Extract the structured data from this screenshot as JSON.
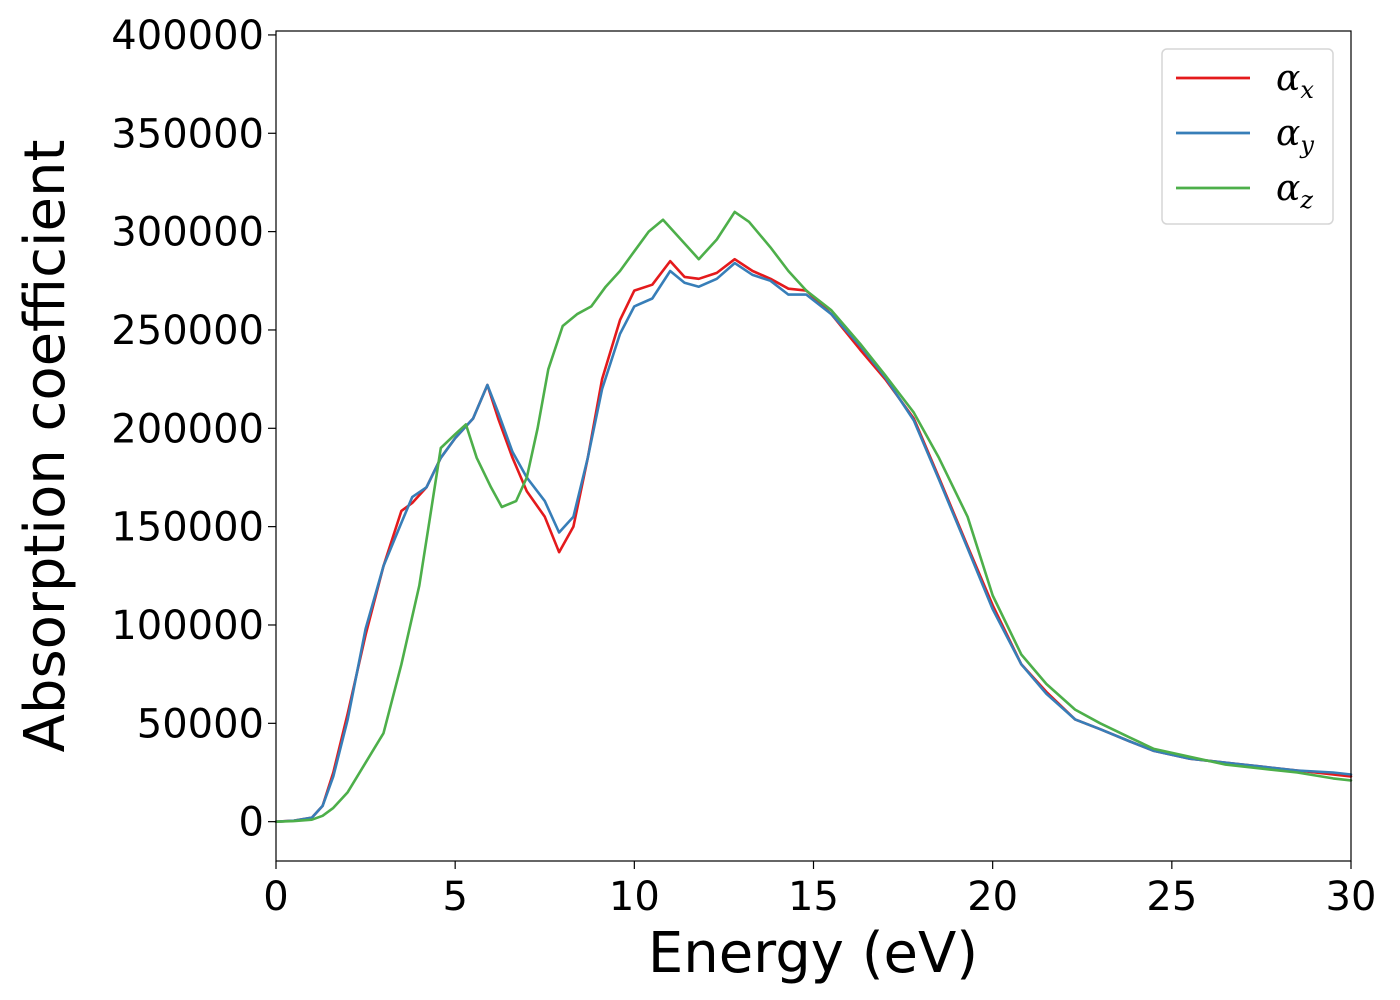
{
  "chart_data": {
    "type": "line",
    "title": "",
    "xlabel": "Energy (eV)",
    "ylabel": "Absorption coefficient",
    "xlim": [
      0,
      30
    ],
    "ylim": [
      -20000,
      402000
    ],
    "xticks": [
      0,
      5,
      10,
      15,
      20,
      25,
      30
    ],
    "xtick_labels": [
      "0",
      "5",
      "10",
      "15",
      "20",
      "25",
      "30"
    ],
    "yticks": [
      0,
      50000,
      100000,
      150000,
      200000,
      250000,
      300000,
      350000,
      400000
    ],
    "ytick_labels": [
      "0",
      "50000",
      "100000",
      "150000",
      "200000",
      "250000",
      "300000",
      "350000",
      "400000"
    ],
    "grid": false,
    "legend_position": "top-right",
    "series": [
      {
        "name": "α",
        "subscript": "x",
        "color": "#e41a1c",
        "x": [
          0,
          0.5,
          1.0,
          1.3,
          1.6,
          2.0,
          2.5,
          3.0,
          3.5,
          3.8,
          4.2,
          4.6,
          5.0,
          5.5,
          5.9,
          6.2,
          6.6,
          7.0,
          7.5,
          7.9,
          8.3,
          8.7,
          9.1,
          9.6,
          10.0,
          10.5,
          11.0,
          11.4,
          11.8,
          12.3,
          12.8,
          13.3,
          13.8,
          14.3,
          14.8,
          15.5,
          16.3,
          17.0,
          17.8,
          18.5,
          19.3,
          20.0,
          20.8,
          21.5,
          22.3,
          23.0,
          23.8,
          24.5,
          25.5,
          26.5,
          27.5,
          28.5,
          29.5,
          30.0
        ],
        "y": [
          0,
          500,
          2000,
          8000,
          25000,
          55000,
          95000,
          130000,
          158000,
          162000,
          170000,
          185000,
          195000,
          205000,
          222000,
          205000,
          185000,
          168000,
          155000,
          137000,
          150000,
          185000,
          225000,
          255000,
          270000,
          273000,
          285000,
          277000,
          276000,
          279000,
          286000,
          280000,
          276000,
          271000,
          270000,
          258000,
          240000,
          225000,
          205000,
          175000,
          140000,
          110000,
          80000,
          66000,
          52000,
          47000,
          41000,
          36000,
          32000,
          30000,
          28000,
          26000,
          24000,
          23000
        ]
      },
      {
        "name": "α",
        "subscript": "y",
        "color": "#377eb8",
        "x": [
          0,
          0.5,
          1.0,
          1.3,
          1.6,
          2.0,
          2.5,
          3.0,
          3.5,
          3.8,
          4.2,
          4.6,
          5.0,
          5.5,
          5.9,
          6.2,
          6.6,
          7.0,
          7.5,
          7.9,
          8.3,
          8.7,
          9.1,
          9.6,
          10.0,
          10.5,
          11.0,
          11.4,
          11.8,
          12.3,
          12.8,
          13.3,
          13.8,
          14.3,
          14.8,
          15.5,
          16.3,
          17.0,
          17.8,
          18.5,
          19.3,
          20.0,
          20.8,
          21.5,
          22.3,
          23.0,
          23.8,
          24.5,
          25.5,
          26.5,
          27.5,
          28.5,
          29.5,
          30.0
        ],
        "y": [
          0,
          500,
          2000,
          8000,
          23000,
          52000,
          98000,
          130000,
          152000,
          165000,
          170000,
          185000,
          195000,
          205000,
          222000,
          208000,
          188000,
          175000,
          163000,
          147000,
          155000,
          185000,
          220000,
          248000,
          262000,
          266000,
          280000,
          274000,
          272000,
          276000,
          284000,
          278000,
          275000,
          268000,
          268000,
          258000,
          242000,
          226000,
          204000,
          174000,
          139000,
          108000,
          80000,
          65000,
          52000,
          47000,
          41000,
          36000,
          32000,
          30000,
          28000,
          26000,
          25000,
          24000
        ]
      },
      {
        "name": "α",
        "subscript": "z",
        "color": "#4daf4a",
        "x": [
          0,
          0.5,
          1.0,
          1.3,
          1.6,
          2.0,
          2.5,
          3.0,
          3.5,
          4.0,
          4.3,
          4.6,
          5.0,
          5.3,
          5.6,
          6.0,
          6.3,
          6.7,
          7.0,
          7.3,
          7.6,
          8.0,
          8.4,
          8.8,
          9.2,
          9.6,
          10.0,
          10.4,
          10.8,
          11.2,
          11.8,
          12.3,
          12.8,
          13.2,
          13.8,
          14.3,
          14.8,
          15.5,
          16.3,
          17.0,
          17.8,
          18.5,
          19.3,
          20.0,
          20.8,
          21.5,
          22.3,
          23.0,
          23.8,
          24.5,
          25.5,
          26.5,
          27.5,
          28.5,
          29.5,
          30.0
        ],
        "y": [
          0,
          300,
          1000,
          3000,
          7000,
          15000,
          30000,
          45000,
          80000,
          120000,
          155000,
          190000,
          197000,
          202000,
          185000,
          170000,
          160000,
          163000,
          175000,
          200000,
          230000,
          252000,
          258000,
          262000,
          272000,
          280000,
          290000,
          300000,
          306000,
          298000,
          286000,
          296000,
          310000,
          305000,
          292000,
          280000,
          270000,
          260000,
          243000,
          227000,
          208000,
          185000,
          155000,
          115000,
          85000,
          70000,
          57000,
          50000,
          43000,
          37000,
          33000,
          29000,
          27000,
          25000,
          22000,
          21000
        ]
      }
    ]
  }
}
